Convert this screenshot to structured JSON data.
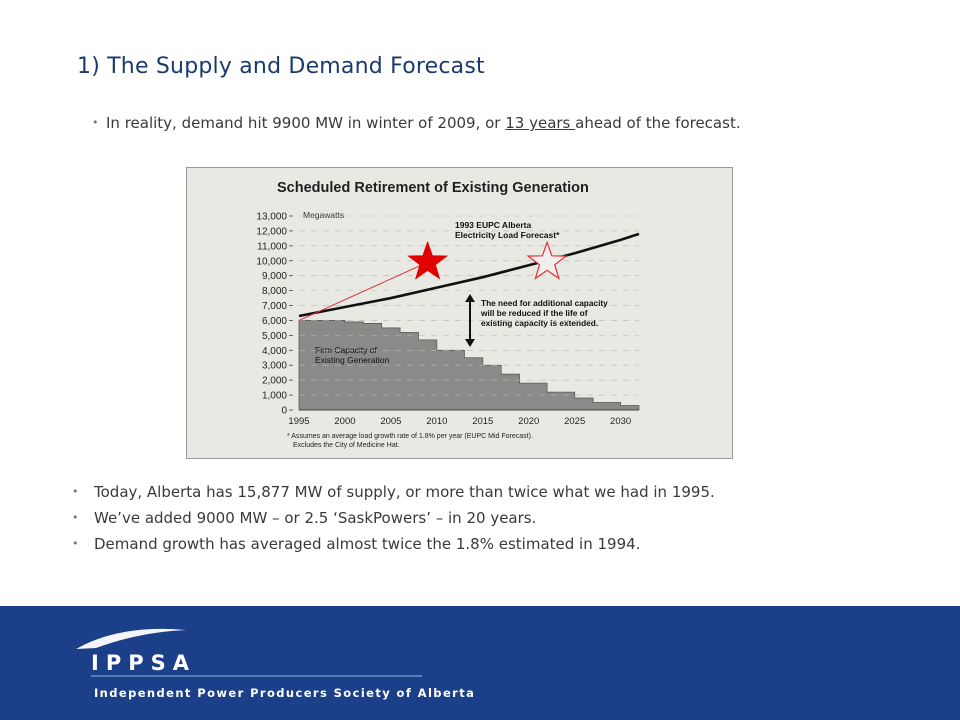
{
  "slide": {
    "title": "1) The Supply and Demand Forecast",
    "top_bullet": {
      "before": "In reality, demand hit 9900 MW in winter of 2009, or ",
      "underlined": "13 years ",
      "after": "ahead of the forecast."
    },
    "bottom_bullets": [
      "Today, Alberta has 15,877 MW of supply, or more than twice what we had in 1995.",
      "We’ve added  9000 MW – or 2.5 ‘SaskPowers’ – in 20 years.",
      "Demand growth has averaged almost twice the 1.8% estimated in 1994."
    ]
  },
  "chart_data": {
    "type": "area",
    "title": "Scheduled Retirement of Existing Generation",
    "ylabel": "Megawatts",
    "ylim": [
      0,
      13000
    ],
    "xlim": [
      1995,
      2032
    ],
    "yticks": [
      "13,000",
      "12,000",
      "11,000",
      "10,000",
      "9,000",
      "8,000",
      "7,000",
      "6,000",
      "5,000",
      "4,000",
      "3,000",
      "2,000",
      "1,000",
      "0"
    ],
    "xticks": [
      "1995",
      "2000",
      "2005",
      "2010",
      "2015",
      "2020",
      "2025",
      "2030"
    ],
    "firm_capacity": {
      "name": "Firm Capacity of Existing Generation",
      "steps": [
        {
          "x": 1995,
          "y": 6000
        },
        {
          "x": 2000,
          "y": 5900
        },
        {
          "x": 2002,
          "y": 5800
        },
        {
          "x": 2004,
          "y": 5500
        },
        {
          "x": 2006,
          "y": 5200
        },
        {
          "x": 2008,
          "y": 4700
        },
        {
          "x": 2010,
          "y": 4000
        },
        {
          "x": 2013,
          "y": 3500
        },
        {
          "x": 2015,
          "y": 3000
        },
        {
          "x": 2017,
          "y": 2400
        },
        {
          "x": 2019,
          "y": 1800
        },
        {
          "x": 2022,
          "y": 1200
        },
        {
          "x": 2025,
          "y": 800
        },
        {
          "x": 2027,
          "y": 500
        },
        {
          "x": 2030,
          "y": 300
        },
        {
          "x": 2032,
          "y": 300
        }
      ]
    },
    "load_forecast": {
      "name": "1993 EUPC Alberta Electricity Load Forecast*",
      "points": [
        {
          "x": 1995,
          "y": 6300
        },
        {
          "x": 2000,
          "y": 6900
        },
        {
          "x": 2005,
          "y": 7500
        },
        {
          "x": 2010,
          "y": 8200
        },
        {
          "x": 2015,
          "y": 8900
        },
        {
          "x": 2020,
          "y": 9700
        },
        {
          "x": 2025,
          "y": 10500
        },
        {
          "x": 2030,
          "y": 11400
        },
        {
          "x": 2032,
          "y": 11800
        }
      ]
    },
    "actual_demand_line": {
      "points": [
        {
          "x": 1995,
          "y": 6000
        },
        {
          "x": 2009,
          "y": 9900
        }
      ]
    },
    "markers": [
      {
        "label": "actual-demand-star",
        "x": 2009,
        "y": 9900,
        "color": "#e00000",
        "filled": true
      },
      {
        "label": "forecast-demand-star",
        "x": 2022,
        "y": 9900,
        "color": "#e03030",
        "filled": false
      }
    ],
    "annotations": {
      "capacity_need": "The need for additional capacity will be reduced if the life of existing capacity is extended.",
      "footnote_1": "* Assumes an average load growth rate of 1.8% per year (EUPC Mid Forecast).",
      "footnote_2": "Excludes the City of Medicine Hat."
    }
  },
  "footer": {
    "logo_name": "IPPSA",
    "logo_subtitle": "Independent Power Producers Society of Alberta",
    "background_color": "#1b3f88"
  }
}
